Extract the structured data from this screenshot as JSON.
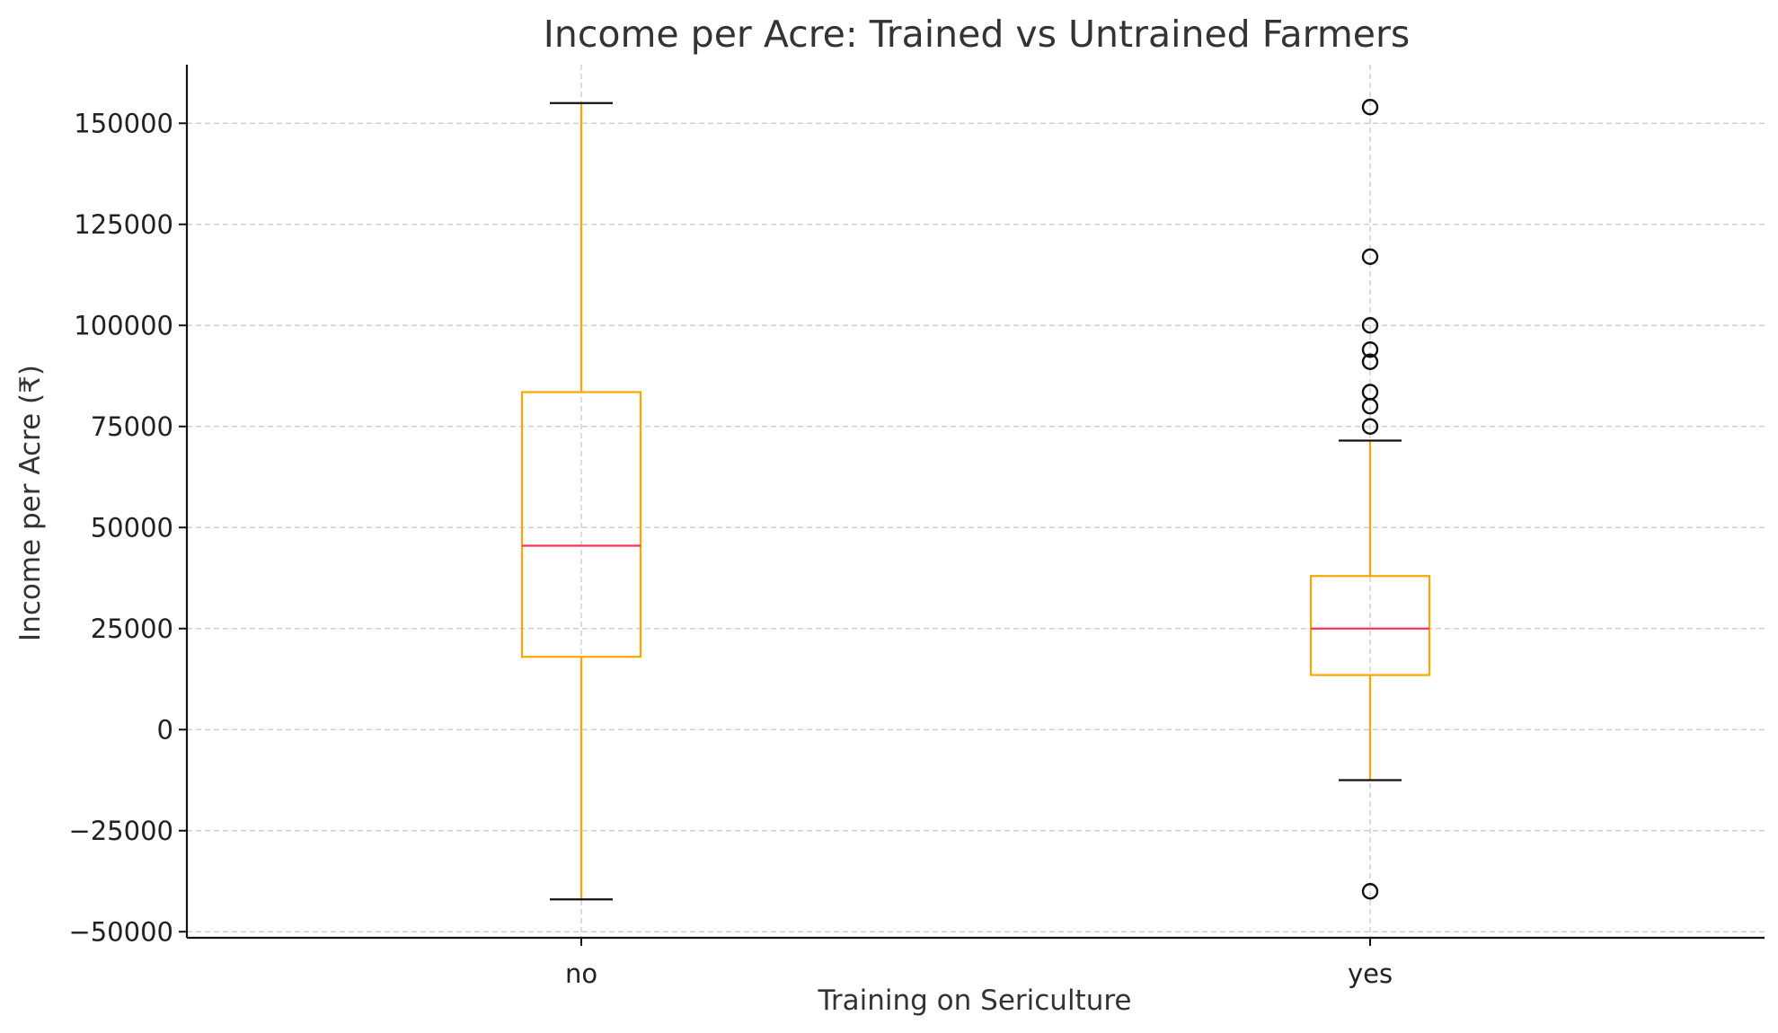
{
  "chart_data": {
    "type": "box",
    "title": "Income per Acre: Trained vs Untrained Farmers",
    "xlabel": "Training on Sericulture",
    "ylabel": "Income per Acre (₹)",
    "categories": [
      "no",
      "yes"
    ],
    "ylim": [
      -51500,
      164500
    ],
    "yticks": [
      -50000,
      -25000,
      0,
      25000,
      50000,
      75000,
      100000,
      125000,
      150000
    ],
    "ytick_labels": [
      "−50000",
      "−25000",
      "0",
      "25000",
      "50000",
      "75000",
      "100000",
      "125000",
      "150000"
    ],
    "grid": true,
    "boxes": [
      {
        "category": "no",
        "whisker_low": -42000,
        "q1": 18000,
        "median": 45500,
        "q3": 83500,
        "whisker_high": 155000,
        "outliers": []
      },
      {
        "category": "yes",
        "whisker_low": -12500,
        "q1": 13500,
        "median": 25000,
        "q3": 38000,
        "whisker_high": 71500,
        "outliers": [
          154000,
          117000,
          100000,
          94000,
          91000,
          83500,
          80000,
          75000,
          -40000
        ]
      }
    ],
    "colors": {
      "box": "#FFA500",
      "median": "#FF3355",
      "whisker_cap": "#111111",
      "grid": "#c8c8c8",
      "axis": "#111111"
    }
  }
}
